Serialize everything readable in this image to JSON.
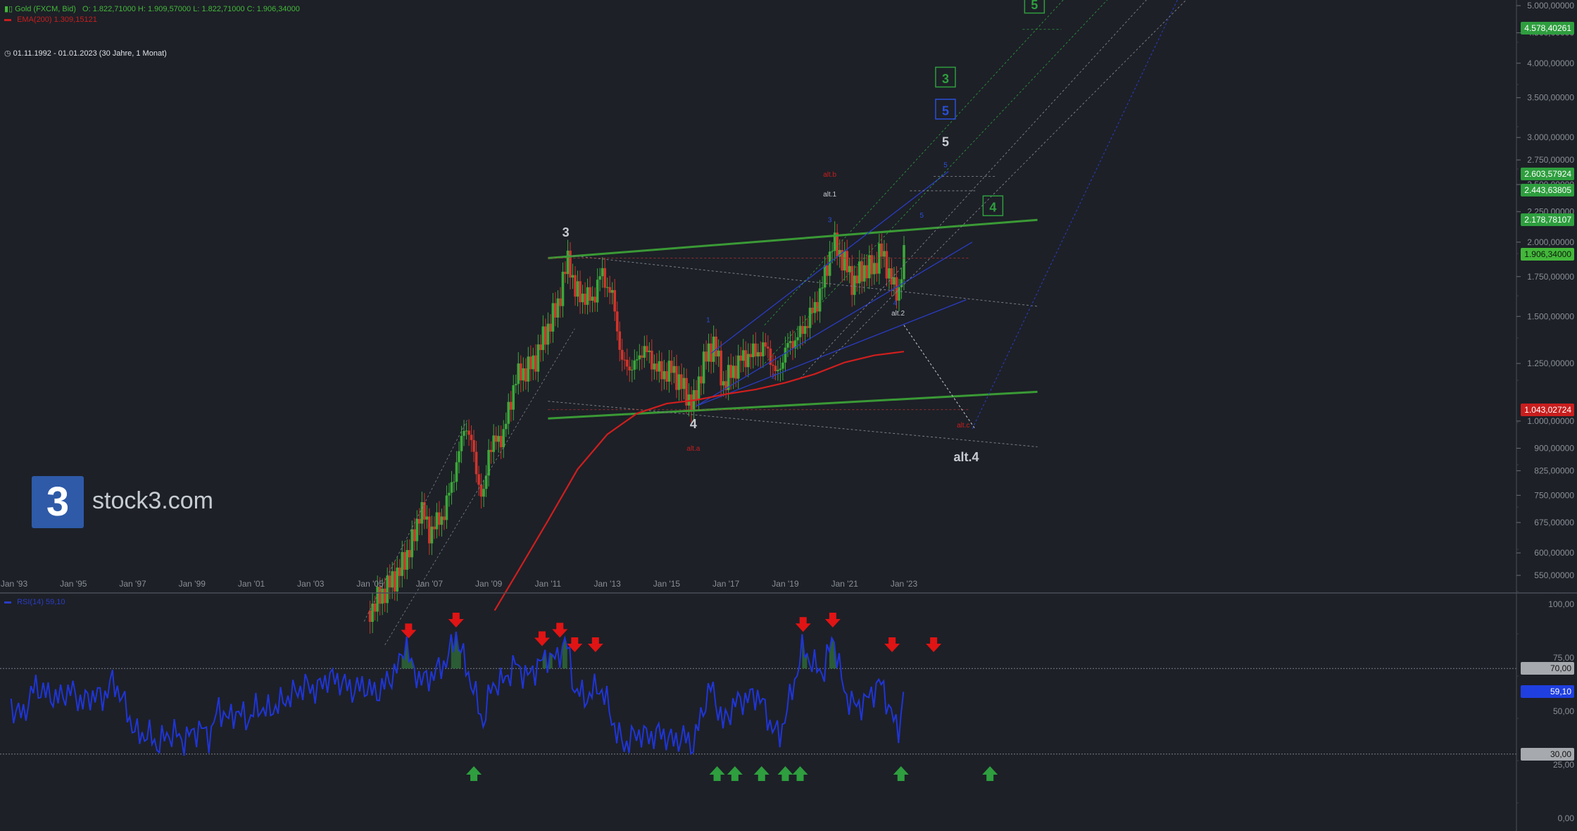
{
  "header": {
    "symbol_label": "Gold (FXCM, Bid)",
    "ohlc": "O: 1.822,71000   H: 1.909,57000   L: 1.822,71000   C: 1.906,34000",
    "ema_label": "EMA(200)  1.309,15121",
    "date_range": "01.11.1992 - 01.01.2023   (30 Jahre, 1 Monat)"
  },
  "brand": {
    "logo_glyph": "3",
    "name": "stock3.com"
  },
  "chart_data": [
    {
      "type": "candlestick",
      "title": "Gold (FXCM, Bid)",
      "x_ticks": [
        "Jan '93",
        "Jan '95",
        "Jan '97",
        "Jan '99",
        "Jan '01",
        "Jan '03",
        "Jan '05",
        "Jan '07",
        "Jan '09",
        "Jan '11",
        "Jan '13",
        "Jan '15",
        "Jan '17",
        "Jan '19",
        "Jan '21",
        "Jan '23"
      ],
      "y_scale": "log",
      "y_ticks": [
        "5.000,00000",
        "4.500,00000",
        "4.000,00000",
        "3.500,00000",
        "3.000,00000",
        "2.750,00000",
        "2.500,00000",
        "2.250,00000",
        "2.000,00000",
        "1.750,00000",
        "1.500,00000",
        "1.250,00000",
        "1.000,00000",
        "900,00000",
        "825,00000",
        "750,00000",
        "675,00000",
        "600,00000",
        "550,00000"
      ],
      "y_tick_values": [
        5000,
        4500,
        4000,
        3500,
        3000,
        2750,
        2500,
        2250,
        2000,
        1750,
        1500,
        1250,
        1000,
        900,
        825,
        750,
        675,
        600,
        550
      ],
      "price_markers": [
        {
          "label": "4.578,40261",
          "value": 4578.4,
          "color": "#2e9e3e"
        },
        {
          "label": "2.603,57924",
          "value": 2603.58,
          "color": "#2e9e3e"
        },
        {
          "label": "2.443,63805",
          "value": 2443.64,
          "color": "#2e9e3e"
        },
        {
          "label": "2.178,78107",
          "value": 2178.78,
          "color": "#2e9e3e"
        },
        {
          "label": "1.906,34000",
          "value": 1906.34,
          "color": "#43b73a"
        },
        {
          "label": "1.043,02724",
          "value": 1043.03,
          "color": "#c81e1e"
        }
      ],
      "price_path": [
        [
          2005.0,
          480
        ],
        [
          2005.5,
          520
        ],
        [
          2006.0,
          560
        ],
        [
          2006.5,
          640
        ],
        [
          2006.7,
          720
        ],
        [
          2007.0,
          650
        ],
        [
          2007.5,
          700
        ],
        [
          2008.0,
          880
        ],
        [
          2008.2,
          1000
        ],
        [
          2008.5,
          880
        ],
        [
          2008.8,
          720
        ],
        [
          2009.0,
          900
        ],
        [
          2009.5,
          950
        ],
        [
          2009.9,
          1180
        ],
        [
          2010.5,
          1250
        ],
        [
          2010.9,
          1400
        ],
        [
          2011.3,
          1550
        ],
        [
          2011.7,
          1900
        ],
        [
          2011.9,
          1650
        ],
        [
          2012.5,
          1600
        ],
        [
          2012.8,
          1780
        ],
        [
          2013.2,
          1600
        ],
        [
          2013.5,
          1250
        ],
        [
          2013.9,
          1230
        ],
        [
          2014.2,
          1330
        ],
        [
          2014.8,
          1200
        ],
        [
          2015.2,
          1220
        ],
        [
          2015.9,
          1060
        ],
        [
          2016.2,
          1240
        ],
        [
          2016.6,
          1360
        ],
        [
          2016.9,
          1150
        ],
        [
          2017.5,
          1270
        ],
        [
          2017.9,
          1300
        ],
        [
          2018.4,
          1330
        ],
        [
          2018.7,
          1180
        ],
        [
          2019.0,
          1320
        ],
        [
          2019.5,
          1400
        ],
        [
          2019.9,
          1520
        ],
        [
          2020.2,
          1650
        ],
        [
          2020.6,
          2000
        ],
        [
          2021.0,
          1850
        ],
        [
          2021.3,
          1700
        ],
        [
          2021.6,
          1800
        ],
        [
          2022.0,
          1810
        ],
        [
          2022.2,
          1940
        ],
        [
          2022.5,
          1780
        ],
        [
          2022.7,
          1650
        ],
        [
          2022.8,
          1630
        ],
        [
          2023.0,
          1906
        ]
      ],
      "ema200_path": [
        [
          2009.2,
          480
        ],
        [
          2010,
          560
        ],
        [
          2011,
          680
        ],
        [
          2012,
          830
        ],
        [
          2013,
          950
        ],
        [
          2014,
          1030
        ],
        [
          2015,
          1070
        ],
        [
          2016,
          1085
        ],
        [
          2017,
          1110
        ],
        [
          2018,
          1130
        ],
        [
          2019,
          1160
        ],
        [
          2020,
          1200
        ],
        [
          2021,
          1255
        ],
        [
          2022,
          1290
        ],
        [
          2023,
          1309
        ]
      ],
      "annotations": [
        {
          "text": "3",
          "x": 2011.6,
          "y": 2080,
          "color": "#c8ccd2",
          "size": 18,
          "box": false
        },
        {
          "text": "4",
          "x": 2015.9,
          "y": 990,
          "color": "#c8ccd2",
          "size": 18,
          "box": false
        },
        {
          "text": "alt.4",
          "x": 2025.1,
          "y": 870,
          "color": "#c8ccd2",
          "size": 18,
          "box": false
        },
        {
          "text": "5",
          "x": 2024.4,
          "y": 2950,
          "color": "#c8ccd2",
          "size": 18,
          "box": false
        },
        {
          "text": "5",
          "x": 2024.4,
          "y": 3330,
          "color": "#2a4fd8",
          "size": 18,
          "box": true
        },
        {
          "text": "3",
          "x": 2024.4,
          "y": 3770,
          "color": "#2e9e3e",
          "size": 18,
          "box": true
        },
        {
          "text": "5",
          "x": 2027.4,
          "y": 5020,
          "color": "#2e9e3e",
          "size": 18,
          "box": true
        },
        {
          "text": "4",
          "x": 2026.0,
          "y": 2290,
          "color": "#2e9e3e",
          "size": 18,
          "box": true
        },
        {
          "text": "alt.b",
          "x": 2020.5,
          "y": 2600,
          "color": "#c81e1e",
          "size": 10,
          "box": false
        },
        {
          "text": "alt.1",
          "x": 2020.5,
          "y": 2410,
          "color": "#c8ccd2",
          "size": 10,
          "box": false
        },
        {
          "text": "alt.2",
          "x": 2022.8,
          "y": 1520,
          "color": "#c8ccd2",
          "size": 10,
          "box": false
        },
        {
          "text": "alt.c",
          "x": 2025.0,
          "y": 985,
          "color": "#c81e1e",
          "size": 10,
          "box": false
        },
        {
          "text": "alt.a",
          "x": 2015.9,
          "y": 900,
          "color": "#c81e1e",
          "size": 10,
          "box": false
        },
        {
          "text": "1",
          "x": 2016.4,
          "y": 1480,
          "color": "#2a4fd8",
          "size": 10,
          "box": false
        },
        {
          "text": "2",
          "x": 2018.6,
          "y": 1190,
          "color": "#2a4fd8",
          "size": 10,
          "box": false
        },
        {
          "text": "3",
          "x": 2020.5,
          "y": 2180,
          "color": "#2a4fd8",
          "size": 10,
          "box": false
        },
        {
          "text": "4",
          "x": 2022.7,
          "y": 1580,
          "color": "#2a4fd8",
          "size": 10,
          "box": false
        },
        {
          "text": "5",
          "x": 2023.6,
          "y": 2220,
          "color": "#2a4fd8",
          "size": 10,
          "box": false
        },
        {
          "text": "5",
          "x": 2024.4,
          "y": 2700,
          "color": "#2a4fd8",
          "size": 10,
          "box": false
        }
      ],
      "trend_lines": [
        {
          "from": [
            2011.0,
            1880
          ],
          "to": [
            2027.5,
            2180
          ],
          "color": "#3a9a35",
          "width": 3,
          "dash": false
        },
        {
          "from": [
            2011.0,
            1010
          ],
          "to": [
            2027.5,
            1120
          ],
          "color": "#3a9a35",
          "width": 3,
          "dash": false
        },
        {
          "from": [
            2016.5,
            1300
          ],
          "to": [
            2024.5,
            2630
          ],
          "color": "#2a3cc4",
          "width": 1.3,
          "dash": false
        },
        {
          "from": [
            2016.0,
            1060
          ],
          "to": [
            2025.3,
            2000
          ],
          "color": "#2a3cc4",
          "width": 1.3,
          "dash": false
        },
        {
          "from": [
            2016.0,
            1060
          ],
          "to": [
            2025.1,
            1600
          ],
          "color": "#2a3cc4",
          "width": 1.3,
          "dash": false
        },
        {
          "from": [
            2011.7,
            1900
          ],
          "to": [
            2027.5,
            1560
          ],
          "color": "#7a7e86",
          "width": 1,
          "dash": true
        },
        {
          "from": [
            2011.0,
            1080
          ],
          "to": [
            2027.5,
            905
          ],
          "color": "#7a7e86",
          "width": 1,
          "dash": true
        },
        {
          "from": [
            2011.0,
            1880
          ],
          "to": [
            2025.2,
            1880
          ],
          "color": "#b83030",
          "width": 0.8,
          "dash": true
        },
        {
          "from": [
            2011.0,
            1045
          ],
          "to": [
            2025.2,
            1045
          ],
          "color": "#b83030",
          "width": 0.8,
          "dash": true
        },
        {
          "from": [
            2023.0,
            1450
          ],
          "to": [
            2025.4,
            970
          ],
          "color": "#c8ccd2",
          "width": 1,
          "dash": true
        },
        {
          "from": [
            2025.3,
            970
          ],
          "to": [
            2032.6,
            5600
          ],
          "color": "#2a3cc4",
          "width": 1,
          "dash": true
        },
        {
          "from": [
            2004.8,
            460
          ],
          "to": [
            2008.3,
            1010
          ],
          "color": "#8a8e96",
          "width": 0.7,
          "dash": true
        },
        {
          "from": [
            2005.5,
            420
          ],
          "to": [
            2011.9,
            1430
          ],
          "color": "#8a8e96",
          "width": 0.7,
          "dash": true
        },
        {
          "from": [
            2018.3,
            1450
          ],
          "to": [
            2029.1,
            5600
          ],
          "color": "#2e9e3e",
          "width": 0.8,
          "dash": true
        },
        {
          "from": [
            2018.3,
            1250
          ],
          "to": [
            2030.6,
            5600
          ],
          "color": "#2e9e3e",
          "width": 0.8,
          "dash": true
        },
        {
          "from": [
            2019.5,
            1180
          ],
          "to": [
            2031.9,
            5600
          ],
          "color": "#8a8e96",
          "width": 0.8,
          "dash": true
        },
        {
          "from": [
            2020.5,
            1270
          ],
          "to": [
            2033.3,
            5600
          ],
          "color": "#8a8e96",
          "width": 0.8,
          "dash": true
        },
        {
          "from": [
            2024.0,
            2580
          ],
          "to": [
            2026.1,
            2580
          ],
          "color": "#8a8e96",
          "width": 0.8,
          "dash": true
        },
        {
          "from": [
            2023.2,
            2440
          ],
          "to": [
            2025.4,
            2440
          ],
          "color": "#8a8e96",
          "width": 0.8,
          "dash": true
        },
        {
          "from": [
            2027.0,
            4560
          ],
          "to": [
            2028.3,
            4560
          ],
          "color": "#2e9e3e",
          "width": 0.8,
          "dash": true
        }
      ]
    },
    {
      "type": "line",
      "title": "RSI(14)  59,10",
      "y_ticks": [
        "100,00",
        "75,00",
        "50,00",
        "25,00",
        "0,00"
      ],
      "y_tick_values": [
        100,
        75,
        50,
        25,
        0
      ],
      "ylim": [
        0,
        100
      ],
      "thresholds": [
        {
          "label": "70,00",
          "value": 70
        },
        {
          "label": "30,00",
          "value": 30
        }
      ],
      "current": {
        "label": "59,10",
        "value": 59.1
      },
      "rsi_path": [
        [
          1992.9,
          52
        ],
        [
          1993.3,
          48
        ],
        [
          1993.7,
          62
        ],
        [
          1994.1,
          58
        ],
        [
          1994.5,
          56
        ],
        [
          1994.9,
          60
        ],
        [
          1995.3,
          54
        ],
        [
          1995.7,
          58
        ],
        [
          1996.0,
          56
        ],
        [
          1996.3,
          64
        ],
        [
          1996.6,
          58
        ],
        [
          1996.9,
          46
        ],
        [
          1997.2,
          38
        ],
        [
          1997.5,
          40
        ],
        [
          1997.8,
          34
        ],
        [
          1998.1,
          38
        ],
        [
          1998.4,
          40
        ],
        [
          1998.7,
          36
        ],
        [
          1999.0,
          40
        ],
        [
          1999.3,
          42
        ],
        [
          1999.6,
          38
        ],
        [
          1999.9,
          52
        ],
        [
          2000.2,
          46
        ],
        [
          2000.5,
          50
        ],
        [
          2000.9,
          46
        ],
        [
          2001.2,
          52
        ],
        [
          2001.6,
          50
        ],
        [
          2002.0,
          54
        ],
        [
          2002.4,
          58
        ],
        [
          2002.8,
          62
        ],
        [
          2003.2,
          60
        ],
        [
          2003.6,
          66
        ],
        [
          2004.0,
          64
        ],
        [
          2004.4,
          60
        ],
        [
          2004.8,
          62
        ],
        [
          2005.2,
          58
        ],
        [
          2005.6,
          64
        ],
        [
          2006.0,
          72
        ],
        [
          2006.2,
          84
        ],
        [
          2006.4,
          70
        ],
        [
          2006.8,
          64
        ],
        [
          2007.2,
          68
        ],
        [
          2007.6,
          74
        ],
        [
          2007.9,
          86
        ],
        [
          2008.2,
          72
        ],
        [
          2008.5,
          60
        ],
        [
          2008.8,
          44
        ],
        [
          2009.1,
          62
        ],
        [
          2009.5,
          64
        ],
        [
          2009.9,
          72
        ],
        [
          2010.3,
          66
        ],
        [
          2010.7,
          72
        ],
        [
          2011.0,
          76
        ],
        [
          2011.3,
          74
        ],
        [
          2011.6,
          84
        ],
        [
          2011.9,
          60
        ],
        [
          2012.3,
          56
        ],
        [
          2012.7,
          62
        ],
        [
          2013.0,
          54
        ],
        [
          2013.3,
          40
        ],
        [
          2013.6,
          34
        ],
        [
          2014.0,
          40
        ],
        [
          2014.4,
          38
        ],
        [
          2014.8,
          40
        ],
        [
          2015.2,
          36
        ],
        [
          2015.6,
          38
        ],
        [
          2015.9,
          34
        ],
        [
          2016.2,
          50
        ],
        [
          2016.5,
          62
        ],
        [
          2016.9,
          44
        ],
        [
          2017.3,
          54
        ],
        [
          2017.7,
          56
        ],
        [
          2018.1,
          58
        ],
        [
          2018.5,
          44
        ],
        [
          2018.8,
          38
        ],
        [
          2019.2,
          58
        ],
        [
          2019.6,
          80
        ],
        [
          2019.9,
          72
        ],
        [
          2020.3,
          68
        ],
        [
          2020.6,
          86
        ],
        [
          2021.0,
          58
        ],
        [
          2021.4,
          52
        ],
        [
          2021.8,
          56
        ],
        [
          2022.2,
          64
        ],
        [
          2022.5,
          52
        ],
        [
          2022.8,
          40
        ],
        [
          2023.0,
          59.1
        ]
      ],
      "overbought_fill_zones": [
        [
          2006.0,
          2006.5
        ],
        [
          2007.7,
          2008.1
        ],
        [
          2010.8,
          2011.2
        ],
        [
          2011.4,
          2011.7
        ],
        [
          2019.5,
          2019.8
        ],
        [
          2020.4,
          2020.8
        ]
      ],
      "sell_signals": [
        2006.3,
        2007.9,
        2010.8,
        2011.4,
        2011.9,
        2012.6,
        2019.6,
        2020.6,
        2022.6,
        2024.0
      ],
      "buy_signals": [
        2008.5,
        2016.7,
        2017.3,
        2018.2,
        2019.0,
        2019.5,
        2022.9,
        2025.9
      ]
    }
  ]
}
